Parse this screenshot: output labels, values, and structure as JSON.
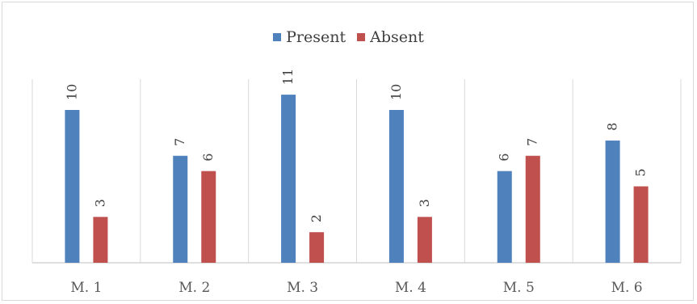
{
  "chart_data": {
    "type": "bar",
    "title": "",
    "xlabel": "",
    "ylabel": "",
    "categories": [
      "M. 1",
      "M. 2",
      "M. 3",
      "M. 4",
      "M. 5",
      "M. 6"
    ],
    "series": [
      {
        "name": "Present",
        "color": "#4f81bd",
        "values": [
          10,
          7,
          11,
          10,
          6,
          8
        ]
      },
      {
        "name": "Absent",
        "color": "#c0504d",
        "values": [
          3,
          6,
          2,
          3,
          7,
          5
        ]
      }
    ],
    "ylim": [
      0,
      12
    ],
    "grid": "vertical separators",
    "legend_position": "top"
  }
}
